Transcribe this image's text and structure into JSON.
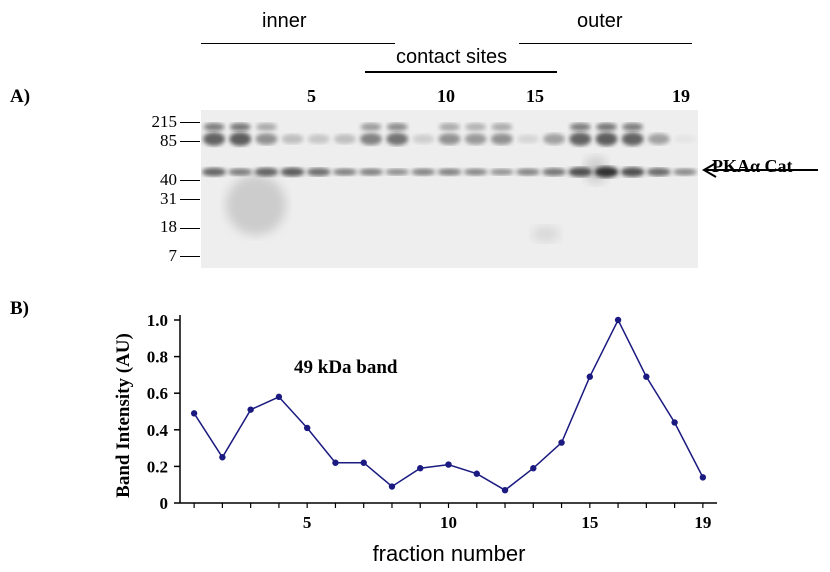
{
  "header": {
    "inner_label": "inner",
    "outer_label": "outer",
    "contact_label": "contact sites"
  },
  "panel_a": {
    "label": "A)",
    "lane_numbers": [
      "5",
      "10",
      "15",
      "19"
    ],
    "mw_markers": [
      "215",
      "85",
      "40",
      "31",
      "18",
      "7"
    ],
    "band_label": "PKAα Cat"
  },
  "panel_b": {
    "label": "B)"
  },
  "chart_data": {
    "type": "line",
    "title": "",
    "annotation": "49 kDa band",
    "xlabel": "fraction number",
    "ylabel": "Band Intensity (AU)",
    "x": [
      1,
      2,
      3,
      4,
      5,
      6,
      7,
      8,
      9,
      10,
      11,
      12,
      13,
      14,
      15,
      16,
      17,
      18,
      19
    ],
    "series": [
      {
        "name": "",
        "values": [
          0.49,
          0.25,
          0.51,
          0.58,
          0.41,
          0.22,
          0.22,
          0.09,
          0.19,
          0.21,
          0.16,
          0.07,
          0.19,
          0.33,
          0.69,
          1.0,
          0.69,
          0.44,
          0.14
        ]
      }
    ],
    "xticks": [
      "5",
      "10",
      "15",
      "19"
    ],
    "xtick_values": [
      5,
      10,
      15,
      19
    ],
    "yticks": [
      "0",
      "0.2",
      "0.4",
      "0.6",
      "0.8",
      "1.0"
    ],
    "ytick_values": [
      0,
      0.2,
      0.4,
      0.6,
      0.8,
      1.0
    ],
    "ylim": [
      0,
      1.0
    ],
    "xlim": [
      0.5,
      19.5
    ],
    "grid": false,
    "line_color": "#1a1a80"
  }
}
